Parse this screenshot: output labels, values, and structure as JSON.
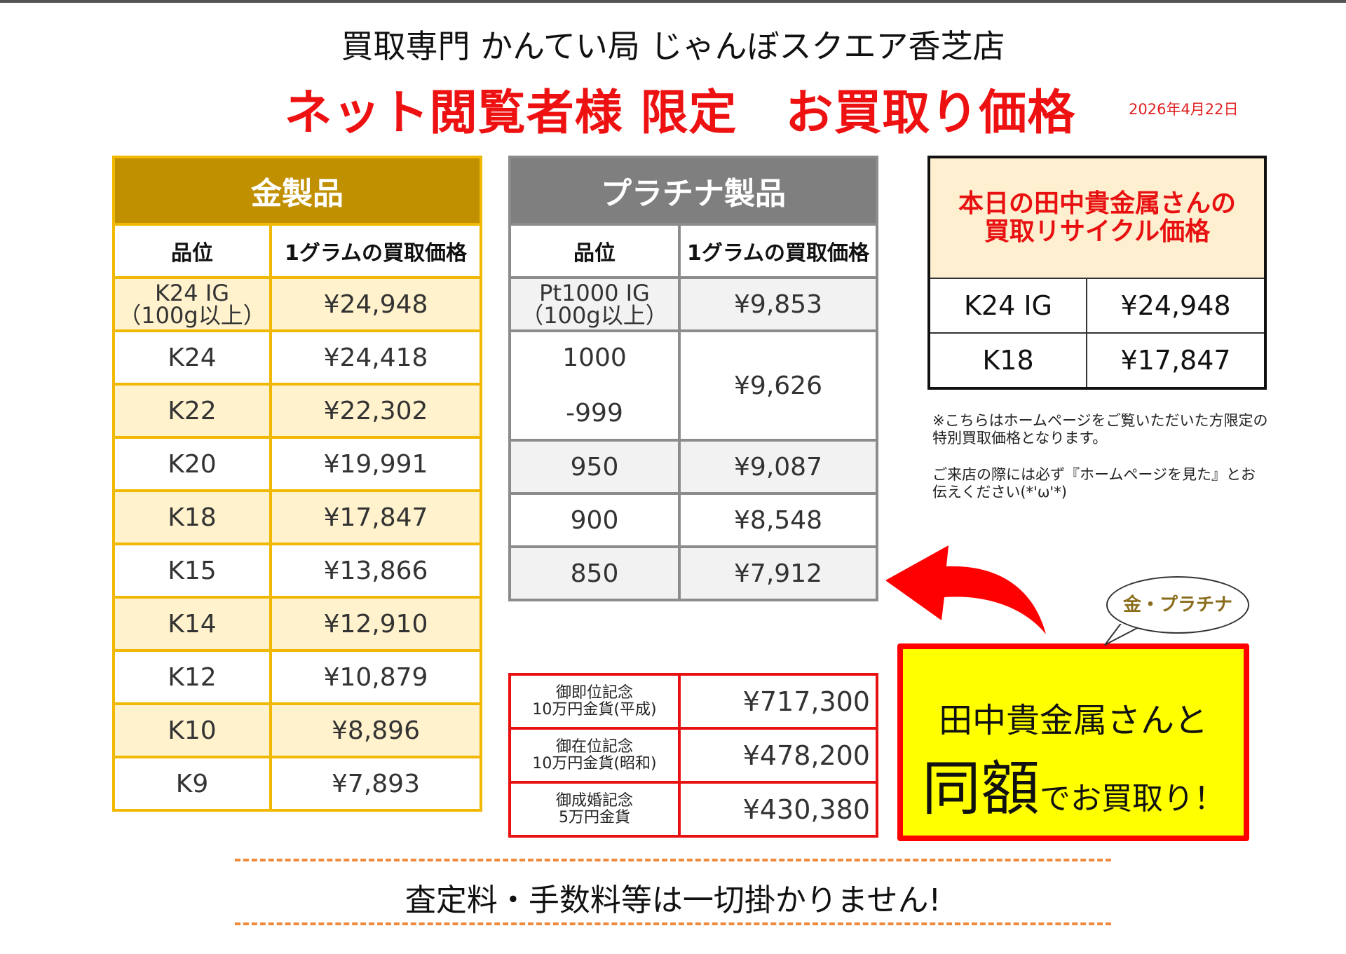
{
  "header": {
    "store_name": "買取専門 かんてい局 じゃんぼスクエア香芝店",
    "headline": "ネット閲覧者様 限定　お買取り価格",
    "date": "2026年4月22日"
  },
  "gold_table": {
    "title": "金製品",
    "col_grade": "品位",
    "col_price": "1グラムの買取価格",
    "rows": [
      {
        "grade": "K24 IG",
        "grade_sub": "（100g以上）",
        "price": "¥24,948"
      },
      {
        "grade": "K24",
        "price": "¥24,418"
      },
      {
        "grade": "K22",
        "price": "¥22,302"
      },
      {
        "grade": "K20",
        "price": "¥19,991"
      },
      {
        "grade": "K18",
        "price": "¥17,847"
      },
      {
        "grade": "K15",
        "price": "¥13,866"
      },
      {
        "grade": "K14",
        "price": "¥12,910"
      },
      {
        "grade": "K12",
        "price": "¥10,879"
      },
      {
        "grade": "K10",
        "price": "¥8,896"
      },
      {
        "grade": "K9",
        "price": "¥7,893"
      }
    ]
  },
  "platinum_table": {
    "title": "プラチナ製品",
    "col_grade": "品位",
    "col_price": "1グラムの買取価格",
    "rows": [
      {
        "grade": "Pt1000 IG",
        "grade_sub": "（100g以上）",
        "price": "¥9,853"
      },
      {
        "grade": "1000",
        "grade2": "-999",
        "price": "¥9,626"
      },
      {
        "grade": "950",
        "price": "¥9,087"
      },
      {
        "grade": "900",
        "price": "¥8,548"
      },
      {
        "grade": "850",
        "price": "¥7,912"
      }
    ]
  },
  "coin_table": {
    "rows": [
      {
        "line1": "御即位記念",
        "line2": "10万円金貨(平成)",
        "price": "¥717,300"
      },
      {
        "line1": "御在位記念",
        "line2": "10万円金貨(昭和)",
        "price": "¥478,200"
      },
      {
        "line1": "御成婚記念",
        "line2": "5万円金貨",
        "price": "¥430,380"
      }
    ]
  },
  "recycle_table": {
    "title_line1": "本日の田中貴金属さんの",
    "title_line2": "買取リサイクル価格",
    "rows": [
      {
        "grade": "K24 IG",
        "price": "¥24,948"
      },
      {
        "grade": "K18",
        "price": "¥17,847"
      }
    ]
  },
  "notes": [
    "※こちらはホームページをご覧いただいた方限定の特別買取価格となります。",
    "ご来店の際には必ず『ホームページを見た』とお伝えください(*'ω'*)"
  ],
  "promo": {
    "bubble": "金・プラチナ",
    "line1": "田中貴金属さんと",
    "big": "同額",
    "line2_rest": "でお買取り！"
  },
  "footer": {
    "text": "査定料・手数料等は一切掛かりません!"
  },
  "colors": {
    "gold_header": "#c09000",
    "gold_border": "#f0b800",
    "platinum_header": "#7f7f7f",
    "accent_red": "#ee1111",
    "promo_yellow": "#ffff00"
  }
}
